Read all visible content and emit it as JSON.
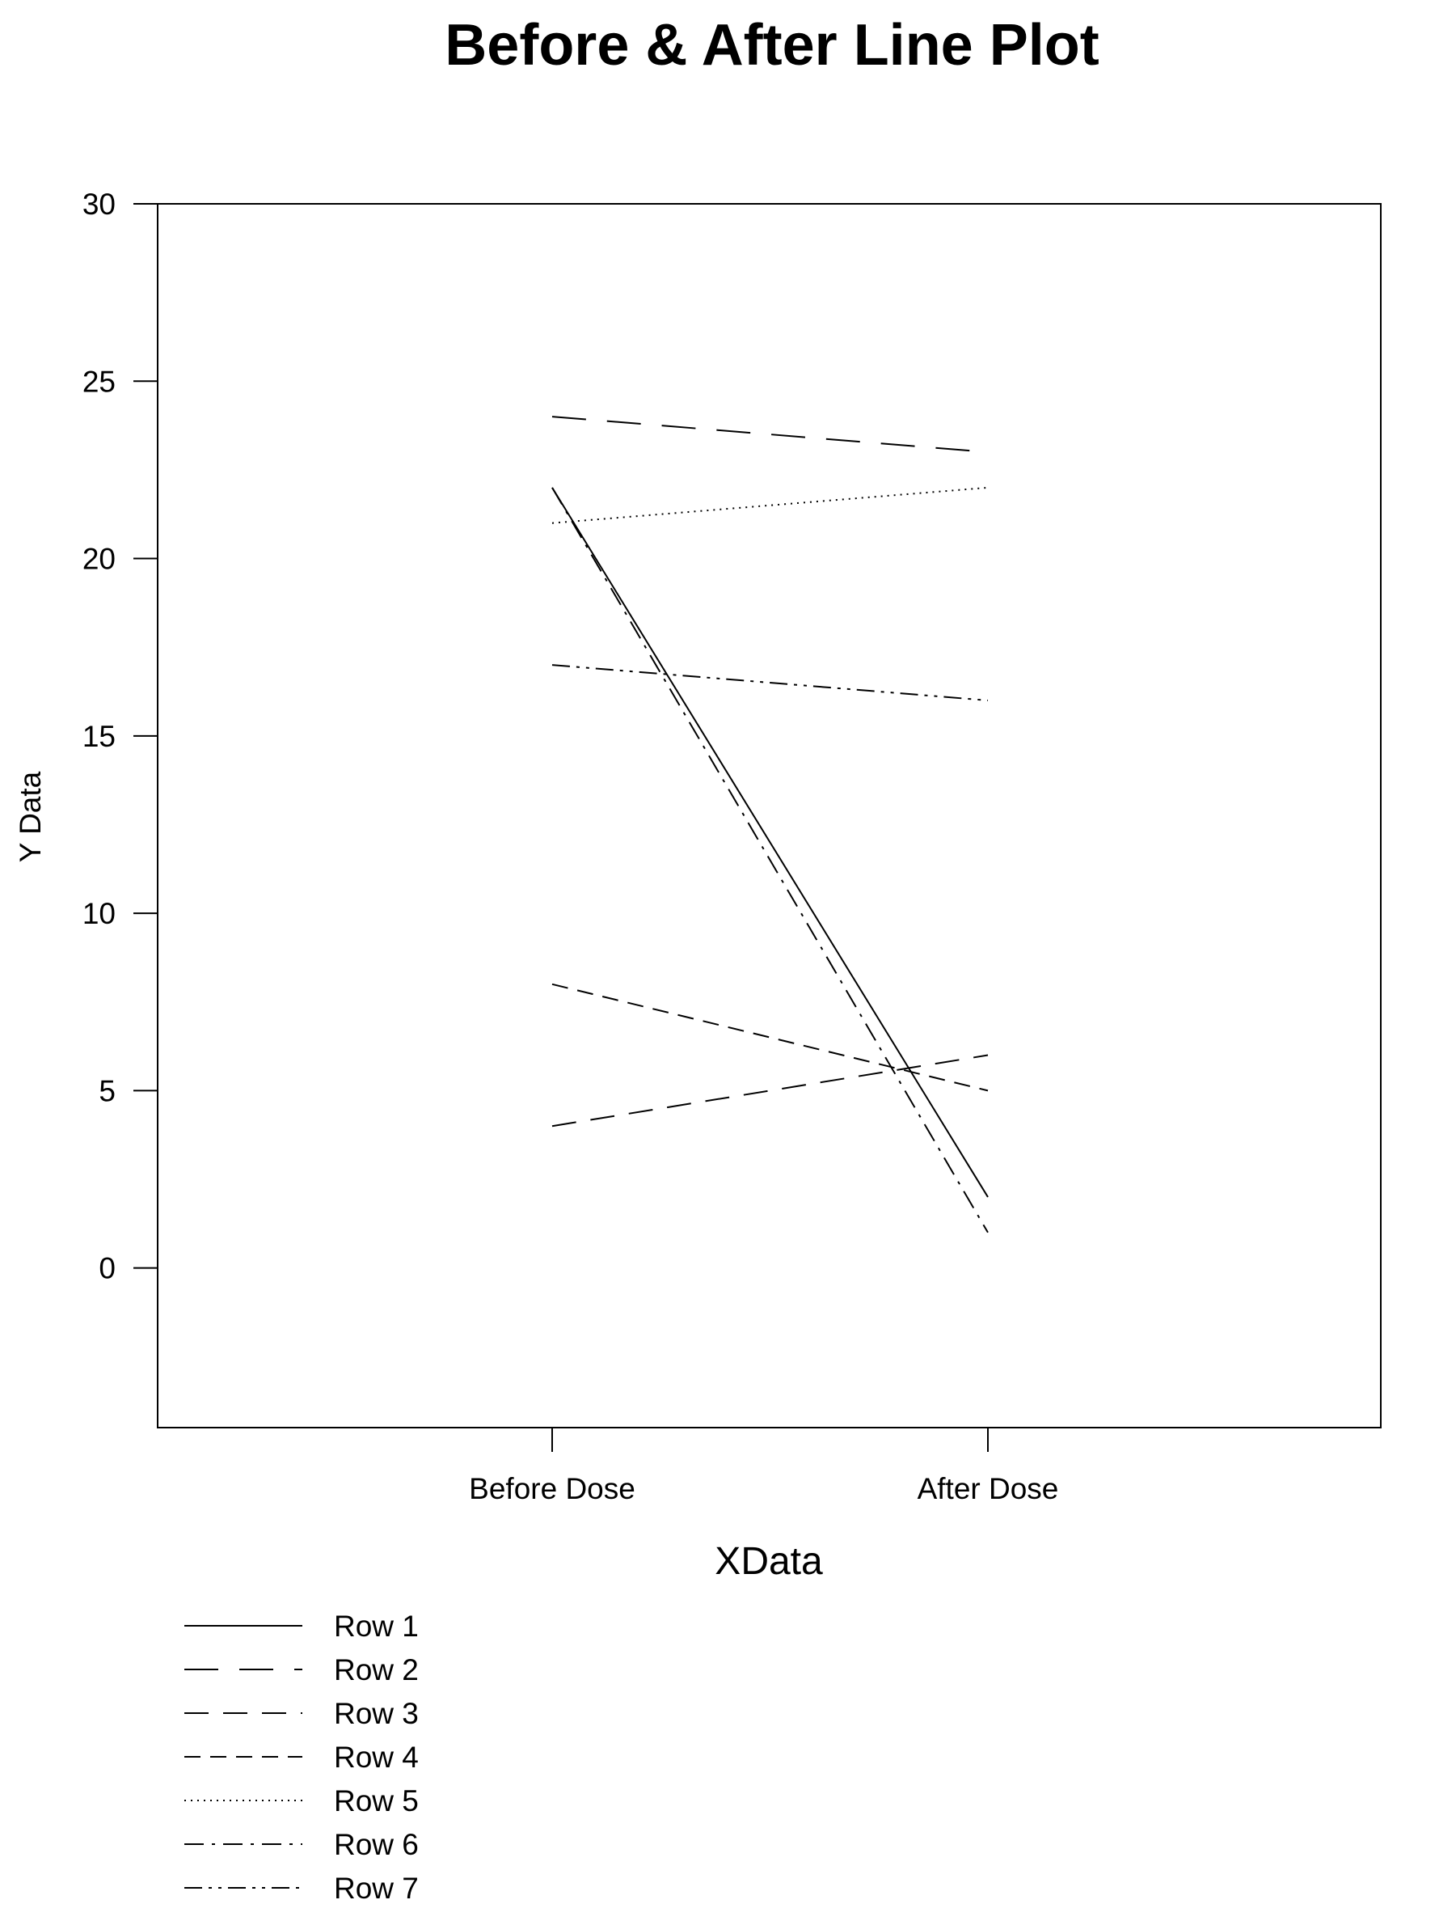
{
  "chart_data": {
    "type": "line",
    "title": "Before & After Line Plot",
    "xlabel": "XData",
    "ylabel": "Y Data",
    "categories": [
      "Before Dose",
      "After Dose"
    ],
    "ylim": [
      -4.5,
      30
    ],
    "yticks": [
      0,
      5,
      10,
      15,
      20,
      25,
      30
    ],
    "grid": false,
    "legend_position": "bottom-left",
    "series": [
      {
        "name": "Row 1",
        "values": [
          22,
          2
        ],
        "dash": "solid"
      },
      {
        "name": "Row 2",
        "values": [
          24,
          23
        ],
        "dash": "long-dash"
      },
      {
        "name": "Row 3",
        "values": [
          4,
          6
        ],
        "dash": "medium-dash"
      },
      {
        "name": "Row 4",
        "values": [
          8,
          5
        ],
        "dash": "short-dash"
      },
      {
        "name": "Row 5",
        "values": [
          21,
          22
        ],
        "dash": "dotted"
      },
      {
        "name": "Row 6",
        "values": [
          22,
          1
        ],
        "dash": "dash-dot"
      },
      {
        "name": "Row 7",
        "values": [
          17,
          16
        ],
        "dash": "dash-dot-dot"
      }
    ]
  }
}
